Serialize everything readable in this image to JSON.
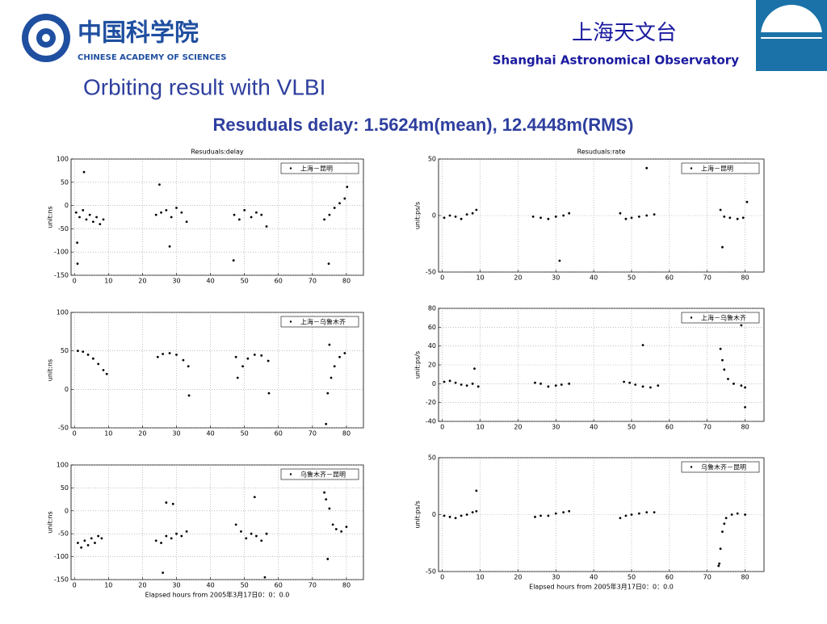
{
  "header": {
    "cas_name_cn": "中国科学院",
    "cas_name_en": "CHINESE ACADEMY OF SCIENCES",
    "sho_name_cn": "上海天文台",
    "sho_name_en": "Shanghai Astronomical Observatory",
    "title": "Orbiting result with VLBI",
    "subtitle": "Resuduals delay: 1.5624m(mean), 12.4448m(RMS)"
  },
  "chart_data": [
    {
      "type": "scatter",
      "title": "Resuduals:delay",
      "ylabel": "unit:ns",
      "x": [
        0.5,
        1.5,
        2.5,
        3.5,
        4.5,
        5.5,
        6.5,
        7.5,
        8.5,
        24,
        25.5,
        27,
        28.5,
        30,
        31.5,
        33,
        47,
        48.5,
        50,
        52,
        53.5,
        55,
        56.5,
        73.5,
        75,
        76.5,
        78,
        79.5,
        2.8,
        0.8,
        0.9,
        25,
        28,
        46.8,
        74.8,
        80.2
      ],
      "series": [
        {
          "name": "上海－昆明",
          "color": "#000000",
          "values": [
            -15,
            -25,
            -10,
            -30,
            -20,
            -35,
            -25,
            -40,
            -30,
            -20,
            -15,
            -10,
            -25,
            -5,
            -15,
            -35,
            -20,
            -30,
            -10,
            -25,
            -15,
            -20,
            -45,
            -30,
            -20,
            -5,
            5,
            15,
            72,
            -80,
            -125,
            45,
            -88,
            -118,
            -125,
            40
          ]
        }
      ],
      "xlim": [
        -1,
        85
      ],
      "ylim": [
        -150,
        100
      ],
      "xticks": [
        0,
        10,
        20,
        30,
        40,
        50,
        60,
        70,
        80
      ],
      "yticks": [
        -150,
        -100,
        -50,
        0,
        50,
        100
      ],
      "grid": true,
      "legend": "upper right"
    },
    {
      "type": "scatter",
      "title": "Resuduals:rate",
      "ylabel": "unit:ps/s",
      "x": [
        0.5,
        2,
        3.5,
        5,
        6.5,
        8,
        9,
        24,
        26,
        28,
        30,
        32,
        33.5,
        47,
        48.5,
        50,
        52,
        54,
        56,
        73.5,
        74.5,
        76,
        78,
        79.5,
        31,
        54,
        74,
        80.5
      ],
      "series": [
        {
          "name": "上海－昆明",
          "color": "#000000",
          "values": [
            -2,
            0,
            -1,
            -3,
            1,
            2,
            5,
            -1,
            -2,
            -3,
            -1,
            0,
            2,
            2,
            -3,
            -2,
            -1,
            0,
            1,
            5,
            -1,
            -2,
            -3,
            -2,
            -40,
            42,
            -28,
            12
          ]
        }
      ],
      "xlim": [
        -1,
        85
      ],
      "ylim": [
        -50,
        50
      ],
      "xticks": [
        0,
        10,
        20,
        30,
        40,
        50,
        60,
        70,
        80
      ],
      "yticks": [
        -50,
        0,
        50
      ],
      "grid": true,
      "legend": "upper right"
    },
    {
      "type": "scatter",
      "ylabel": "unit:ns",
      "x": [
        1,
        2.5,
        4,
        5.5,
        7,
        8.5,
        9.5,
        24.5,
        26,
        28,
        30,
        32,
        33.5,
        48,
        49.5,
        51,
        53,
        55,
        57,
        74,
        74.5,
        75.5,
        76.5,
        78,
        79.5,
        33.7,
        47.5,
        57.2,
        75
      ],
      "series": [
        {
          "name": "上海－乌鲁木齐",
          "color": "#000000",
          "values": [
            50,
            49,
            45,
            40,
            33,
            25,
            20,
            42,
            46,
            47,
            45,
            38,
            30,
            15,
            30,
            40,
            45,
            44,
            37,
            -45,
            -5,
            15,
            30,
            42,
            47,
            -8,
            42,
            -5,
            58
          ]
        }
      ],
      "xlim": [
        -1,
        85
      ],
      "ylim": [
        -50,
        100
      ],
      "xticks": [
        0,
        10,
        20,
        30,
        40,
        50,
        60,
        70,
        80
      ],
      "yticks": [
        -50,
        0,
        50,
        100
      ],
      "grid": true,
      "legend": "upper right"
    },
    {
      "type": "scatter",
      "ylabel": "unit:ps/s",
      "x": [
        0.5,
        2,
        3.5,
        5,
        6.5,
        8,
        9.5,
        24.5,
        26,
        28,
        30,
        31.5,
        33.5,
        48,
        49.5,
        51,
        53,
        55,
        57,
        73.5,
        74,
        74.5,
        75.5,
        77,
        79,
        80,
        8.5,
        53,
        79,
        80
      ],
      "series": [
        {
          "name": "上海－乌鲁木齐",
          "color": "#000000",
          "values": [
            2,
            3,
            1,
            -1,
            -2,
            0,
            -3,
            1,
            0,
            -3,
            -2,
            -1,
            0,
            2,
            1,
            -1,
            -3,
            -4,
            -2,
            37,
            25,
            15,
            5,
            0,
            -2,
            -4,
            16,
            41,
            62,
            -25
          ]
        }
      ],
      "xlim": [
        -1,
        85
      ],
      "ylim": [
        -40,
        80
      ],
      "xticks": [
        0,
        10,
        20,
        30,
        40,
        50,
        60,
        70,
        80
      ],
      "yticks": [
        -40,
        -20,
        0,
        20,
        40,
        60,
        80
      ],
      "grid": true,
      "legend": "upper right"
    },
    {
      "type": "scatter",
      "ylabel": "unit:ns",
      "xlabel": "Elapsed hours from 2005年3月17日0：0：0.0",
      "x": [
        1,
        2,
        3,
        4,
        5,
        6,
        7,
        8,
        24,
        25.5,
        27,
        28.5,
        30,
        31.5,
        33,
        47.5,
        49,
        50.5,
        52,
        53.5,
        55,
        56.5,
        73.5,
        74,
        75,
        76,
        77,
        78.5,
        80,
        27,
        29,
        53,
        26,
        74.5,
        56
      ],
      "series": [
        {
          "name": "乌鲁木齐－昆明",
          "color": "#000000",
          "values": [
            -70,
            -80,
            -65,
            -75,
            -60,
            -70,
            -55,
            -60,
            -65,
            -70,
            -55,
            -60,
            -50,
            -55,
            -45,
            -30,
            -45,
            -60,
            -50,
            -55,
            -65,
            -50,
            40,
            25,
            5,
            -30,
            -40,
            -45,
            -35,
            18,
            15,
            30,
            -135,
            -105,
            -145
          ]
        }
      ],
      "xlim": [
        -1,
        85
      ],
      "ylim": [
        -150,
        100
      ],
      "xticks": [
        0,
        10,
        20,
        30,
        40,
        50,
        60,
        70,
        80
      ],
      "yticks": [
        -150,
        -100,
        -50,
        0,
        50,
        100
      ],
      "grid": true,
      "legend": "upper right"
    },
    {
      "type": "scatter",
      "ylabel": "unit:ps/s",
      "xlabel": "Elapsed hours from 2005年3月17日0：0：0.0",
      "x": [
        0.5,
        2,
        3.5,
        5,
        6.5,
        8,
        9,
        24.5,
        26,
        28,
        30,
        32,
        33.5,
        47,
        48.5,
        50,
        52,
        54,
        56,
        73,
        73.5,
        74,
        74.5,
        75,
        76.5,
        78,
        80,
        9,
        73.2
      ],
      "series": [
        {
          "name": "乌鲁木齐－昆明",
          "color": "#000000",
          "values": [
            -1,
            -2,
            -3,
            -1,
            0,
            2,
            3,
            -2,
            -1,
            -1,
            1,
            2,
            3,
            -3,
            -1,
            0,
            1,
            2,
            2,
            -45,
            -30,
            -15,
            -8,
            -3,
            0,
            1,
            0,
            21,
            -43
          ]
        }
      ],
      "xlim": [
        -1,
        85
      ],
      "ylim": [
        -50,
        50
      ],
      "xticks": [
        0,
        10,
        20,
        30,
        40,
        50,
        60,
        70,
        80
      ],
      "yticks": [
        -50,
        0,
        50
      ],
      "grid": true,
      "legend": "upper right"
    }
  ]
}
